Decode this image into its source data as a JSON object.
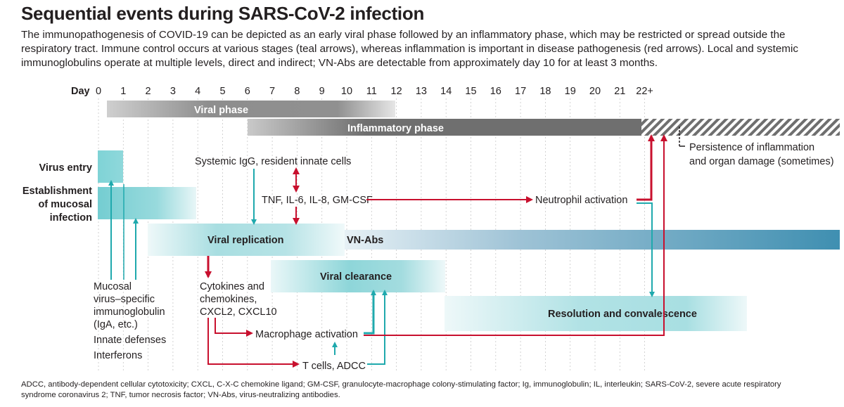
{
  "title": "Sequential events during SARS-CoV-2 infection",
  "subtitle": "The immunopathogenesis of COVID-19 can be depicted as an early viral phase followed by an inflammatory phase, which may be restricted or spread outside the respiratory tract. Immune control occurs at various stages (teal arrows), whereas inflammation is important in disease pathogenesis (red arrows). Local and systemic immunoglobulins operate at multiple levels, direct and indirect; VN-Abs are detectable from approximately day 10 for at least 3 months.",
  "axis": {
    "label": "Day",
    "ticks": [
      "0",
      "1",
      "2",
      "3",
      "4",
      "5",
      "6",
      "7",
      "8",
      "9",
      "10",
      "11",
      "12",
      "13",
      "14",
      "15",
      "16",
      "17",
      "18",
      "19",
      "20",
      "21",
      "22+"
    ]
  },
  "phases": {
    "viral": "Viral phase",
    "inflammatory": "Inflammatory phase"
  },
  "row_labels": {
    "virus_entry": "Virus entry",
    "mucosal_1": "Establishment",
    "mucosal_2": "of mucosal",
    "mucosal_3": "infection"
  },
  "bands": {
    "viral_replication": "Viral replication",
    "vn_abs": "VN-Abs",
    "viral_clearance": "Viral clearance",
    "resolution": "Resolution and convalescence"
  },
  "annotations": {
    "systemic_igg": "Systemic IgG, resident innate cells",
    "cytokines_tnf": "TNF, IL-6, IL-8, GM-CSF",
    "neutrophil": "Neutrophil activation",
    "persistence_1": "Persistence of inflammation",
    "persistence_2": "and organ damage (sometimes)",
    "mucosal_ig": [
      "Mucosal",
      "virus–specific",
      "immunoglobulin",
      "(IgA, etc.)",
      "Innate defenses",
      "Interferons"
    ],
    "cytokines_chemo": [
      "Cytokines and",
      "chemokines,",
      "CXCL2, CXCL10"
    ],
    "macrophage": "Macrophage activation",
    "tcells": "T cells, ADCC"
  },
  "footnote": "ADCC, antibody-dependent cellular cytotoxicity; CXCL, C-X-C chemokine ligand; GM-CSF, granulocyte-macrophage colony-stimulating factor;  Ig, immunoglobulin; IL, interleukin; SARS-CoV-2, severe acute respiratory syndrome coronavirus 2; TNF, tumor necrosis factor; VN-Abs, virus-neutralizing antibodies.",
  "colors": {
    "teal": "#1fa9ad",
    "red": "#c8102e",
    "band_teal": "#7fd0d4",
    "vn_blue": "#4a93b4",
    "grey_bar": "#8c8c8c",
    "dark_bar": "#6e6e6e"
  }
}
